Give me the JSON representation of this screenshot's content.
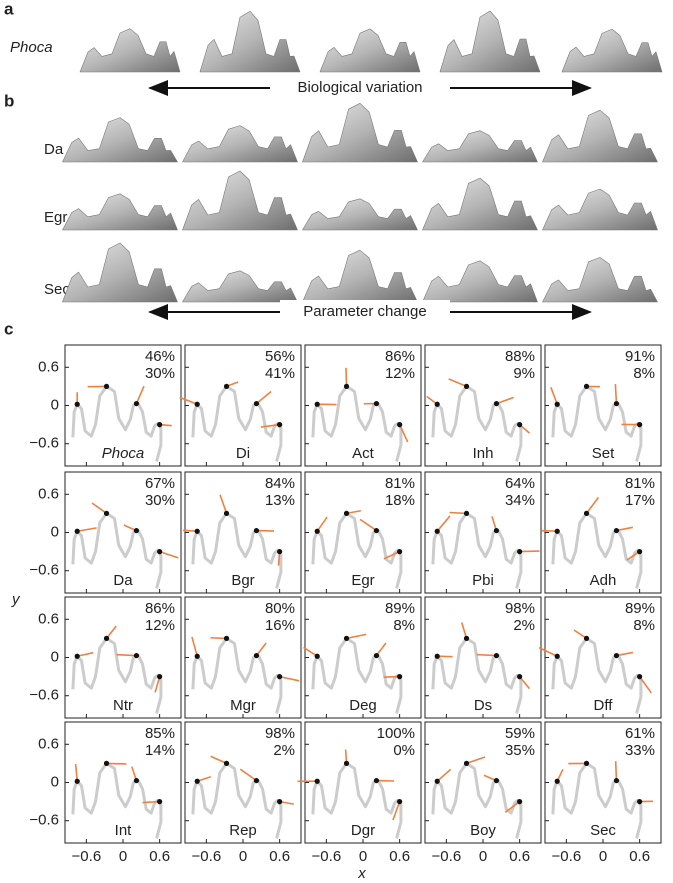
{
  "panel_a": {
    "label": "a",
    "species": "Phoca",
    "caption": "Biological variation"
  },
  "panel_b": {
    "label": "b",
    "rows": [
      "Da",
      "Egr",
      "Sec"
    ],
    "caption": "Parameter change"
  },
  "panel_c": {
    "label": "c",
    "y_label": "y",
    "x_label": "x",
    "yticks": [
      "0.6",
      "0",
      "−0.6"
    ],
    "xticks": [
      "−0.6",
      "0",
      "0.6"
    ],
    "plots": [
      {
        "name": "Phoca",
        "top": "46%",
        "bottom": "30%"
      },
      {
        "name": "Di",
        "top": "56%",
        "bottom": "41%"
      },
      {
        "name": "Act",
        "top": "86%",
        "bottom": "12%"
      },
      {
        "name": "Inh",
        "top": "88%",
        "bottom": "9%"
      },
      {
        "name": "Set",
        "top": "91%",
        "bottom": "8%"
      },
      {
        "name": "Da",
        "top": "67%",
        "bottom": "30%"
      },
      {
        "name": "Bgr",
        "top": "84%",
        "bottom": "13%"
      },
      {
        "name": "Egr",
        "top": "81%",
        "bottom": "18%"
      },
      {
        "name": "Pbi",
        "top": "64%",
        "bottom": "34%"
      },
      {
        "name": "Adh",
        "top": "81%",
        "bottom": "17%"
      },
      {
        "name": "Ntr",
        "top": "86%",
        "bottom": "12%"
      },
      {
        "name": "Mgr",
        "top": "80%",
        "bottom": "16%"
      },
      {
        "name": "Deg",
        "top": "89%",
        "bottom": "8%"
      },
      {
        "name": "Ds",
        "top": "98%",
        "bottom": "2%"
      },
      {
        "name": "Dff",
        "top": "89%",
        "bottom": "8%"
      },
      {
        "name": "Int",
        "top": "85%",
        "bottom": "14%"
      },
      {
        "name": "Rep",
        "top": "98%",
        "bottom": "2%"
      },
      {
        "name": "Dgr",
        "top": "100%",
        "bottom": "0%"
      },
      {
        "name": "Boy",
        "top": "59%",
        "bottom": "35%"
      },
      {
        "name": "Sec",
        "top": "61%",
        "bottom": "33%"
      }
    ]
  }
}
